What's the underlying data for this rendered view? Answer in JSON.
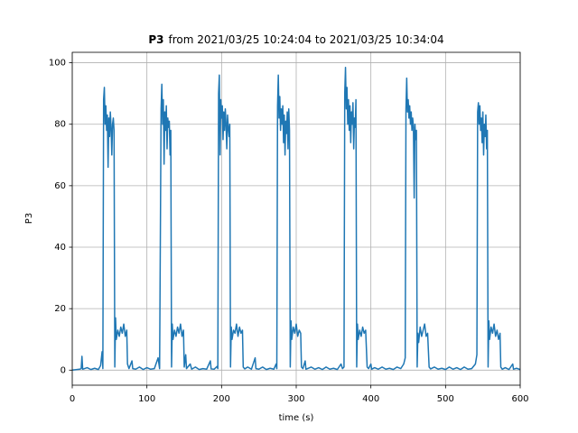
{
  "chart_data": {
    "type": "line",
    "title": {
      "bold": "P3",
      "rest": "from 2021/03/25 10:24:04 to 2021/03/25 10:34:04"
    },
    "xlabel": "time (s)",
    "ylabel": "P3",
    "color": "#1f77b4",
    "grid": true,
    "xlim": [
      0,
      600
    ],
    "xticks": [
      0,
      100,
      200,
      300,
      400,
      500,
      600
    ],
    "ylim": [
      -4.9,
      103.4
    ],
    "yticks": [
      0,
      20,
      40,
      60,
      80,
      100
    ],
    "x": [
      0,
      10,
      12,
      13,
      14,
      20,
      25,
      30,
      35,
      38,
      40,
      41,
      42,
      43,
      44,
      45,
      46,
      47,
      48,
      49,
      50,
      51,
      52,
      53,
      54,
      55,
      56,
      57,
      58,
      59,
      61,
      63,
      65,
      67,
      69,
      71,
      73,
      74,
      76,
      80,
      81,
      85,
      90,
      95,
      100,
      105,
      110,
      115,
      117,
      119,
      120,
      121,
      122,
      123,
      124,
      125,
      126,
      127,
      128,
      129,
      130,
      131,
      132,
      133,
      134,
      135,
      137,
      139,
      141,
      143,
      145,
      147,
      149,
      150,
      152,
      153,
      158,
      160,
      165,
      170,
      175,
      180,
      185,
      186,
      190,
      194,
      195,
      196,
      197,
      198,
      199,
      200,
      201,
      202,
      203,
      204,
      205,
      206,
      207,
      208,
      209,
      210,
      211,
      212,
      213,
      214,
      216,
      218,
      220,
      222,
      224,
      226,
      228,
      229,
      231,
      235,
      240,
      245,
      246,
      250,
      255,
      260,
      265,
      270,
      273,
      274,
      275,
      276,
      277,
      278,
      279,
      280,
      281,
      282,
      283,
      284,
      285,
      286,
      287,
      288,
      289,
      290,
      291,
      292,
      293,
      294,
      296,
      298,
      300,
      302,
      304,
      306,
      307,
      309,
      312,
      313,
      320,
      325,
      330,
      335,
      340,
      345,
      350,
      355,
      360,
      362,
      364,
      365,
      366,
      367,
      368,
      369,
      370,
      371,
      372,
      373,
      374,
      375,
      376,
      377,
      378,
      379,
      380,
      381,
      382,
      383,
      385,
      387,
      389,
      391,
      393,
      395,
      397,
      400,
      401,
      405,
      410,
      415,
      420,
      425,
      430,
      435,
      440,
      444,
      446,
      447,
      448,
      449,
      450,
      451,
      452,
      453,
      454,
      455,
      456,
      457,
      458,
      459,
      460,
      461,
      462,
      463,
      464,
      466,
      468,
      470,
      472,
      474,
      476,
      478,
      480,
      485,
      490,
      495,
      500,
      505,
      510,
      515,
      520,
      525,
      530,
      535,
      540,
      542,
      543,
      544,
      545,
      546,
      547,
      548,
      549,
      550,
      551,
      552,
      553,
      554,
      555,
      556,
      557,
      558,
      559,
      561,
      563,
      565,
      567,
      569,
      571,
      573,
      574,
      576,
      580,
      585,
      590,
      591,
      595,
      600
    ],
    "values": [
      0,
      0.3,
      0.5,
      4.5,
      0.3,
      0.8,
      0.2,
      0.6,
      0.2,
      1.5,
      6,
      0.5,
      88,
      92,
      80,
      86,
      78,
      83,
      66,
      82,
      76,
      84,
      79,
      70,
      80,
      82,
      78,
      1,
      17,
      10,
      13,
      11,
      14,
      12,
      15,
      11,
      13,
      2,
      0.5,
      3,
      0.5,
      0.3,
      1,
      0.2,
      0.8,
      0.3,
      0.5,
      4,
      0.5,
      85,
      93,
      80,
      88,
      67,
      84,
      78,
      86,
      72,
      82,
      79,
      81,
      70,
      78,
      1,
      15,
      10,
      13,
      11,
      14,
      12,
      15,
      11,
      13,
      1,
      5,
      0.5,
      2,
      0.3,
      1,
      0.2,
      0.5,
      0.3,
      3,
      0.4,
      0.3,
      1.2,
      0.5,
      90,
      96,
      70,
      88,
      82,
      86,
      75,
      84,
      78,
      85,
      80,
      72,
      83,
      79,
      76,
      80,
      1,
      14,
      10,
      13,
      12,
      15,
      11,
      14,
      12,
      13,
      1,
      0.4,
      1,
      0.3,
      4,
      0.5,
      0.3,
      1,
      0.2,
      0.6,
      0.3,
      2,
      0.5,
      86,
      96,
      82,
      89,
      78,
      85,
      80,
      86,
      74,
      83,
      70,
      81,
      77,
      84,
      72,
      85,
      78,
      1,
      16,
      10,
      14,
      12,
      15,
      11,
      13,
      12,
      1,
      0.5,
      3,
      0.3,
      1,
      0.3,
      0.8,
      0.2,
      1,
      0.3,
      0.6,
      0.2,
      2,
      0.5,
      1,
      90,
      98.5,
      85,
      92,
      80,
      88,
      78,
      86,
      74,
      84,
      80,
      87,
      72,
      82,
      79,
      88,
      1,
      15,
      10,
      13,
      11,
      14,
      12,
      13,
      1,
      0.5,
      2,
      0.3,
      0.8,
      0.3,
      1,
      0.3,
      0.6,
      0.2,
      1,
      0.5,
      2,
      4,
      85,
      95,
      84,
      88,
      82,
      86,
      80,
      84,
      78,
      82,
      79,
      56,
      80,
      75,
      78,
      1,
      12,
      9,
      14,
      11,
      13,
      15,
      11,
      12,
      1,
      0.4,
      1,
      0.3,
      0.6,
      0.2,
      1,
      0.3,
      0.8,
      0.2,
      1,
      0.3,
      0.5,
      2,
      5,
      84,
      87,
      80,
      86,
      78,
      82,
      74,
      84,
      70,
      80,
      76,
      83,
      72,
      78,
      1,
      16,
      10,
      14,
      12,
      15,
      11,
      13,
      10,
      12,
      1,
      0.3,
      0.8,
      0.2,
      2,
      0.3,
      0.6,
      0.2
    ]
  }
}
